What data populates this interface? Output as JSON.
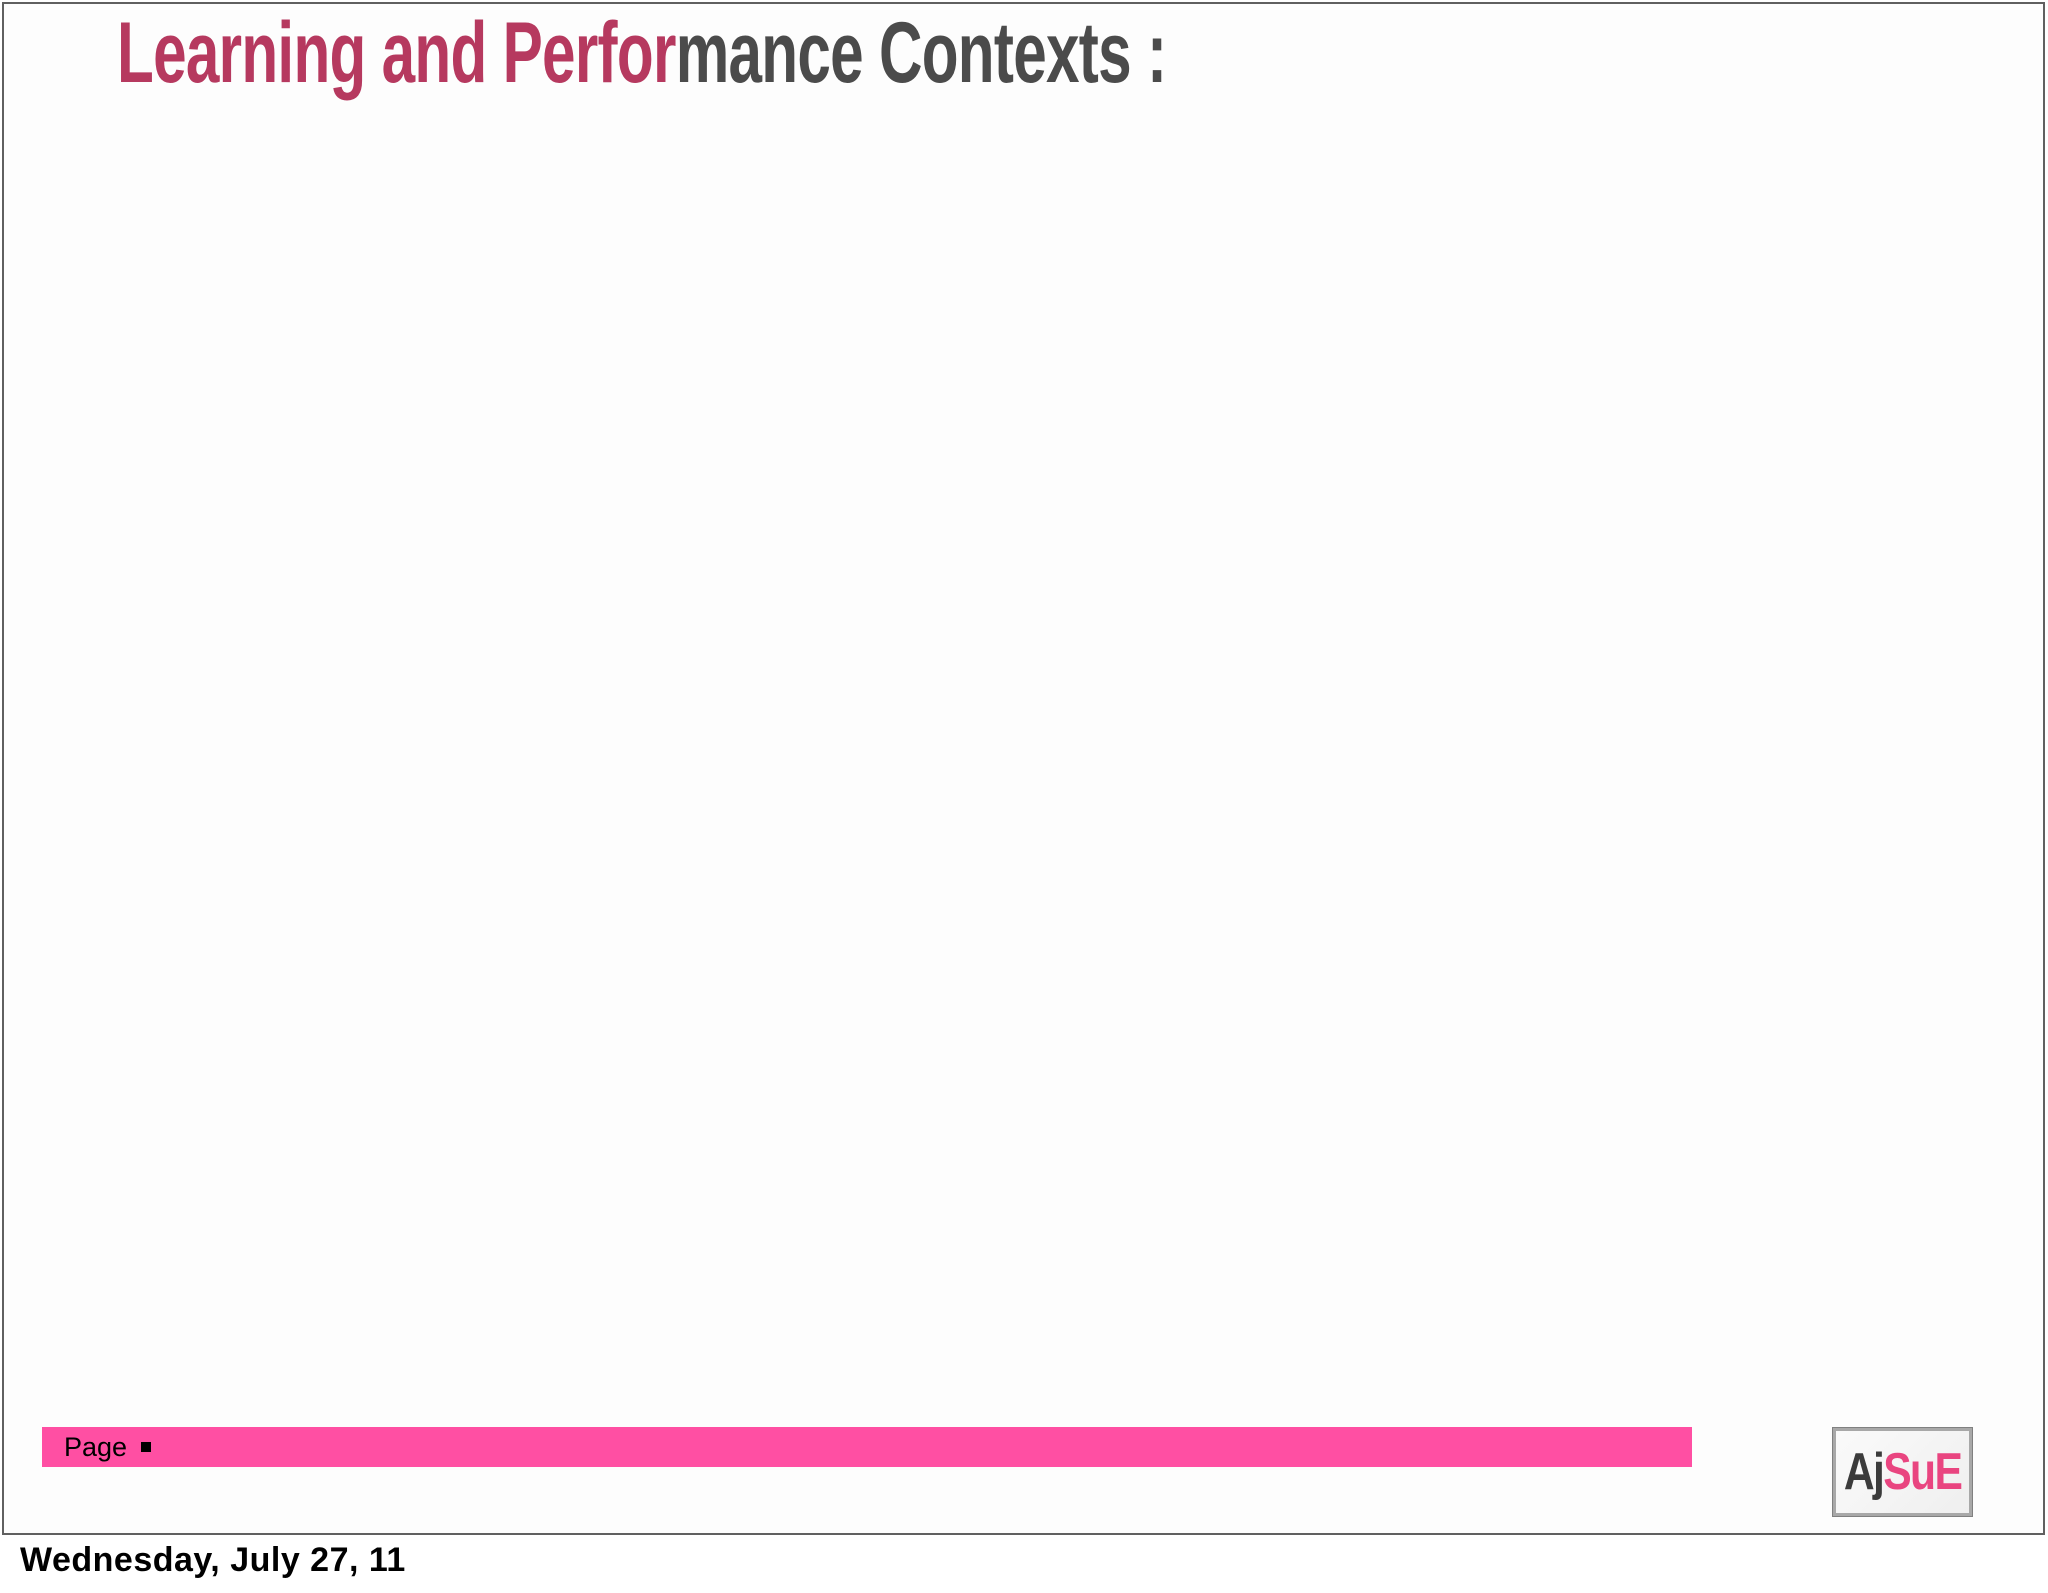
{
  "colors": {
    "title_accent": "#b6395f",
    "title_rest": "#4b4b4b",
    "footer_bar": "#ff4fa3",
    "logo_dark": "#3b3b3b",
    "logo_pink": "#e94580",
    "frame_border": "#606060",
    "slide_bg": "#fdfdfd"
  },
  "slide": {
    "title": {
      "accent_text": "Learning and Perfor",
      "rest_text": "mance Contexts :"
    },
    "footer": {
      "page_label": "Page",
      "bullet_icon": "square-bullet"
    },
    "logo": {
      "dark_text": "Aj",
      "pink_text": "SuE"
    }
  },
  "caption": {
    "date_text": "Wednesday, July 27, 11"
  }
}
